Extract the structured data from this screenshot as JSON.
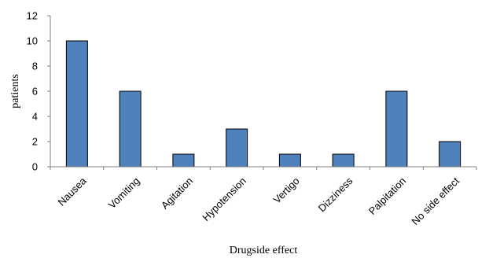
{
  "chart_data": {
    "type": "bar",
    "title": "",
    "xlabel": "Drugside effect",
    "ylabel": "patients",
    "categories": [
      "Nausea",
      "Vomiting",
      "Agitation",
      "Hypotension",
      "Vertigo",
      "Dizziness",
      "Palpitation",
      "No side effect"
    ],
    "values": [
      10,
      6,
      1,
      3,
      1,
      1,
      6,
      2
    ],
    "ylim": [
      0,
      12
    ],
    "yticks": [
      0,
      2,
      4,
      6,
      8,
      10,
      12
    ],
    "grid": false,
    "legend": "none",
    "colors": {
      "bar_fill": "#4F81BD",
      "bar_stroke": "#000000",
      "axis": "#808080"
    }
  }
}
